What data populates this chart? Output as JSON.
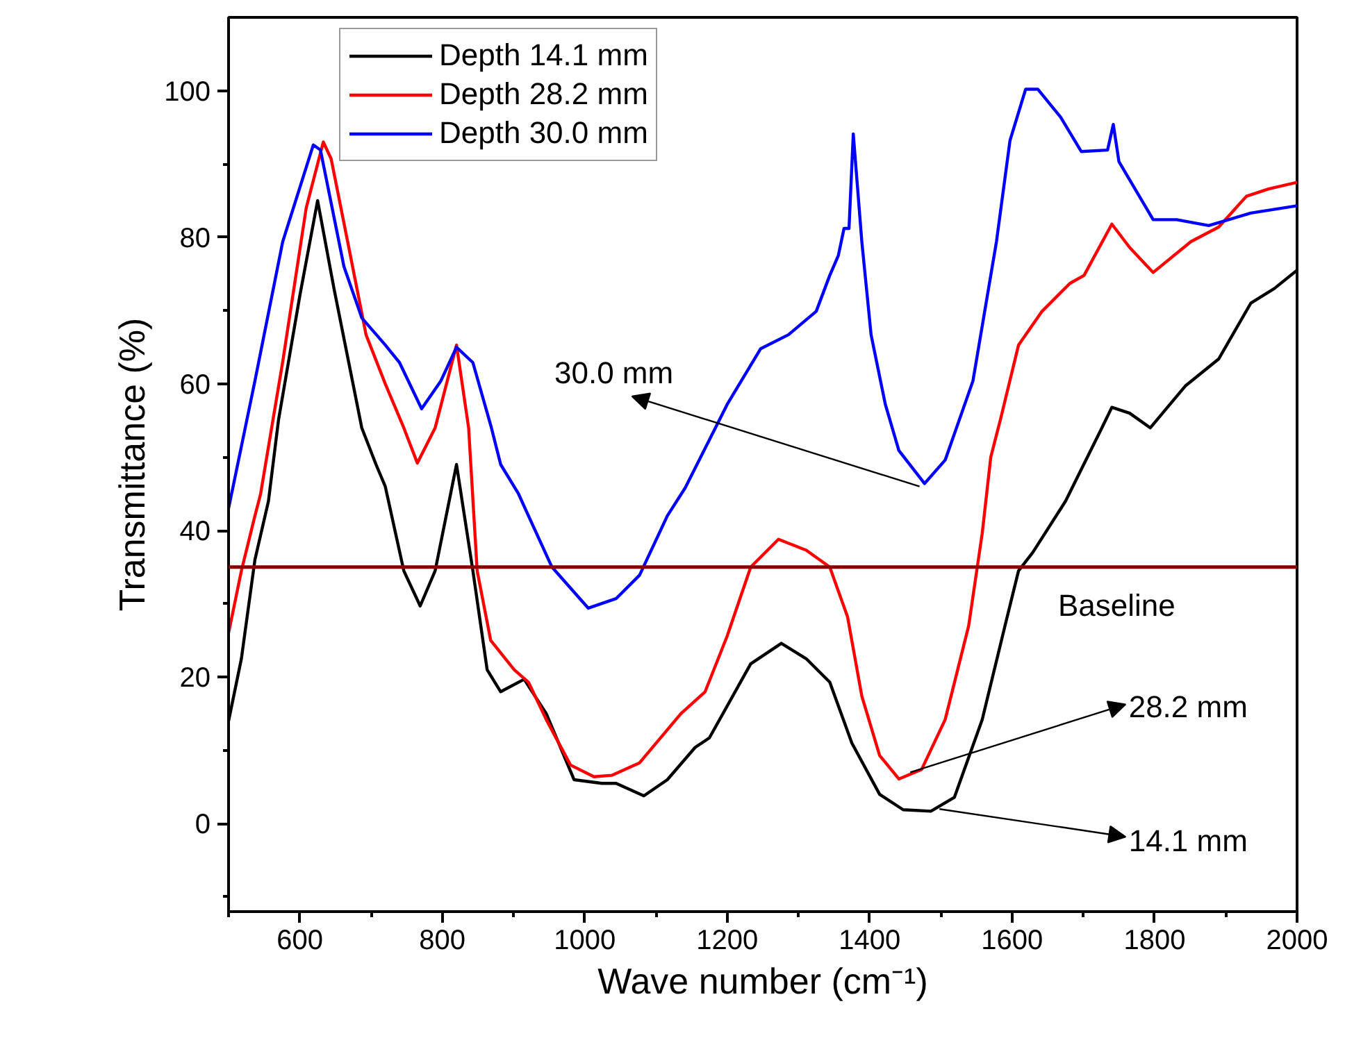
{
  "chart_data": {
    "type": "line",
    "xlabel": "Wave number (cm⁻¹)",
    "ylabel": "Transmittance (%)",
    "xlim": [
      500,
      2000
    ],
    "ylim": [
      -12,
      110
    ],
    "xticks": [
      {
        "value": 500,
        "label": null
      },
      600,
      {
        "value": 700,
        "label": null
      },
      800,
      {
        "value": 900,
        "label": null
      },
      1000,
      {
        "value": 1100,
        "label": null
      },
      1200,
      {
        "value": 1300,
        "label": null
      },
      1400,
      {
        "value": 1500,
        "label": null
      },
      1600,
      {
        "value": 1700,
        "label": null
      },
      1800,
      {
        "value": 1900,
        "label": null
      },
      2000
    ],
    "yticks": [
      {
        "value": -10,
        "label": null
      },
      0,
      {
        "value": 10,
        "label": null
      },
      20,
      {
        "value": 30,
        "label": null
      },
      40,
      {
        "value": 50,
        "label": null
      },
      60,
      {
        "value": 70,
        "label": null
      },
      80,
      {
        "value": 90,
        "label": null
      },
      100
    ],
    "grid": false,
    "legend": "top left",
    "line_style": "solid",
    "marker": "none",
    "series": [
      {
        "name": "Depth 14.1 mm",
        "color": "#000000",
        "x": [
          500,
          518,
          537,
          556,
          570,
          600,
          625,
          648,
          687,
          707,
          720,
          746,
          769,
          790,
          820,
          843,
          863,
          882,
          915,
          946,
          985,
          1024,
          1044,
          1083,
          1116,
          1155,
          1175,
          1233,
          1276,
          1311,
          1344,
          1375,
          1414,
          1447,
          1486,
          1519,
          1558,
          1590,
          1609,
          1629,
          1675,
          1726,
          1740,
          1765,
          1794,
          1843,
          1890,
          1935,
          1968,
          2000
        ],
        "values": [
          14,
          22.5,
          36,
          44,
          55,
          72,
          85,
          73,
          54,
          49,
          46,
          34.5,
          29.7,
          34.5,
          49,
          34.5,
          21,
          18,
          19.7,
          15,
          6,
          5.5,
          5.5,
          3.8,
          6,
          10.4,
          11.7,
          21.8,
          24.6,
          22.5,
          19.3,
          11,
          4,
          1.9,
          1.7,
          3.6,
          14.2,
          27,
          34.5,
          37,
          44,
          54,
          56.8,
          56,
          54,
          59.7,
          63.4,
          71,
          73,
          75.5
        ]
      },
      {
        "name": "Depth 28.2 mm",
        "color": "#ff0000",
        "x": [
          500,
          518,
          537,
          545,
          576,
          609,
          633,
          644,
          668,
          693,
          720,
          746,
          765,
          790,
          820,
          837,
          849,
          868,
          901,
          921,
          946,
          980,
          1013,
          1038,
          1077,
          1135,
          1169,
          1200,
          1233,
          1272,
          1311,
          1344,
          1369,
          1389,
          1414,
          1441,
          1473,
          1506,
          1539,
          1558,
          1570,
          1584,
          1609,
          1642,
          1681,
          1701,
          1740,
          1765,
          1798,
          1851,
          1890,
          1929,
          1960,
          2000
        ],
        "values": [
          26,
          34.5,
          42,
          45,
          63,
          84,
          93,
          90.7,
          79,
          66.7,
          60,
          54,
          49.2,
          54,
          65.3,
          54,
          34.5,
          25,
          21,
          19.3,
          14.2,
          8,
          6.4,
          6.6,
          8.3,
          15,
          18,
          25.6,
          35,
          38.8,
          37.3,
          35,
          28.2,
          17.4,
          9.3,
          6.1,
          7.4,
          14.2,
          27,
          39.6,
          50,
          55.3,
          65.3,
          69.9,
          73.7,
          74.8,
          81.8,
          78.6,
          75.2,
          79.4,
          81.4,
          85.6,
          86.6,
          87.5
        ]
      },
      {
        "name": "Depth 30.0 mm",
        "color": "#0000ff",
        "x": [
          500,
          537,
          576,
          619,
          629,
          662,
          687,
          720,
          740,
          771,
          798,
          820,
          843,
          869,
          882,
          907,
          921,
          954,
          1005,
          1044,
          1077,
          1116,
          1141,
          1200,
          1247,
          1286,
          1325,
          1344,
          1356,
          1364,
          1371,
          1377,
          1389,
          1402,
          1422,
          1441,
          1477,
          1506,
          1545,
          1578,
          1597,
          1619,
          1636,
          1668,
          1697,
          1734,
          1742,
          1750,
          1798,
          1831,
          1876,
          1935,
          2000
        ],
        "values": [
          43,
          60.4,
          79.4,
          92.6,
          91.9,
          76,
          69,
          65.3,
          62.9,
          56.6,
          60.4,
          65,
          62.9,
          54,
          49,
          45,
          42,
          35,
          29.4,
          30.7,
          33.9,
          42,
          45.8,
          57.2,
          64.8,
          66.7,
          69.9,
          74.8,
          77.5,
          81.2,
          81.2,
          94.1,
          79.4,
          66.7,
          57.2,
          50.9,
          46.4,
          49.6,
          60.4,
          79.4,
          93.2,
          100.2,
          100.2,
          96.4,
          91.7,
          91.9,
          95.4,
          90.3,
          82.4,
          82.4,
          81.6,
          83.3,
          84.3
        ]
      }
    ],
    "ref_lines": [
      {
        "axis": "y",
        "value": 35,
        "label": "Baseline",
        "color": "#8b0000",
        "line_style": "solid"
      }
    ],
    "annotations": [
      {
        "text": "30.0 mm",
        "x": 1470,
        "y": 46
      },
      {
        "text": "28.2 mm",
        "x": 1457,
        "y": 7
      },
      {
        "text": "14.1 mm",
        "x": 1498,
        "y": 2
      }
    ]
  }
}
